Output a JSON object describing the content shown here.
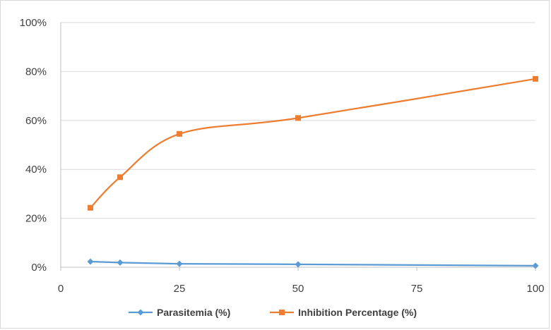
{
  "chart_data": {
    "type": "line",
    "title": "",
    "xlabel": "",
    "ylabel": "",
    "x": [
      6.25,
      12.5,
      25,
      50,
      100
    ],
    "xlim": [
      0,
      100
    ],
    "ylim": [
      0,
      100
    ],
    "x_ticks": [
      0,
      25,
      50,
      75,
      100
    ],
    "y_ticks": [
      0,
      20,
      40,
      60,
      80,
      100
    ],
    "x_tick_labels": [
      "0",
      "25",
      "50",
      "75",
      "100"
    ],
    "y_tick_labels": [
      "0%",
      "20%",
      "40%",
      "60%",
      "80%",
      "100%"
    ],
    "grid": "horizontal",
    "legend_position": "bottom",
    "series": [
      {
        "name": "Parasitemia (%)",
        "values": [
          2.3,
          1.9,
          1.4,
          1.2,
          0.6
        ],
        "color": "#5b9bd5",
        "marker": "diamond",
        "smooth": false
      },
      {
        "name": "Inhibition Percentage (%)",
        "values": [
          24.3,
          36.8,
          54.5,
          61.0,
          77.0
        ],
        "color": "#ed7d31",
        "marker": "square",
        "smooth": true
      }
    ]
  }
}
